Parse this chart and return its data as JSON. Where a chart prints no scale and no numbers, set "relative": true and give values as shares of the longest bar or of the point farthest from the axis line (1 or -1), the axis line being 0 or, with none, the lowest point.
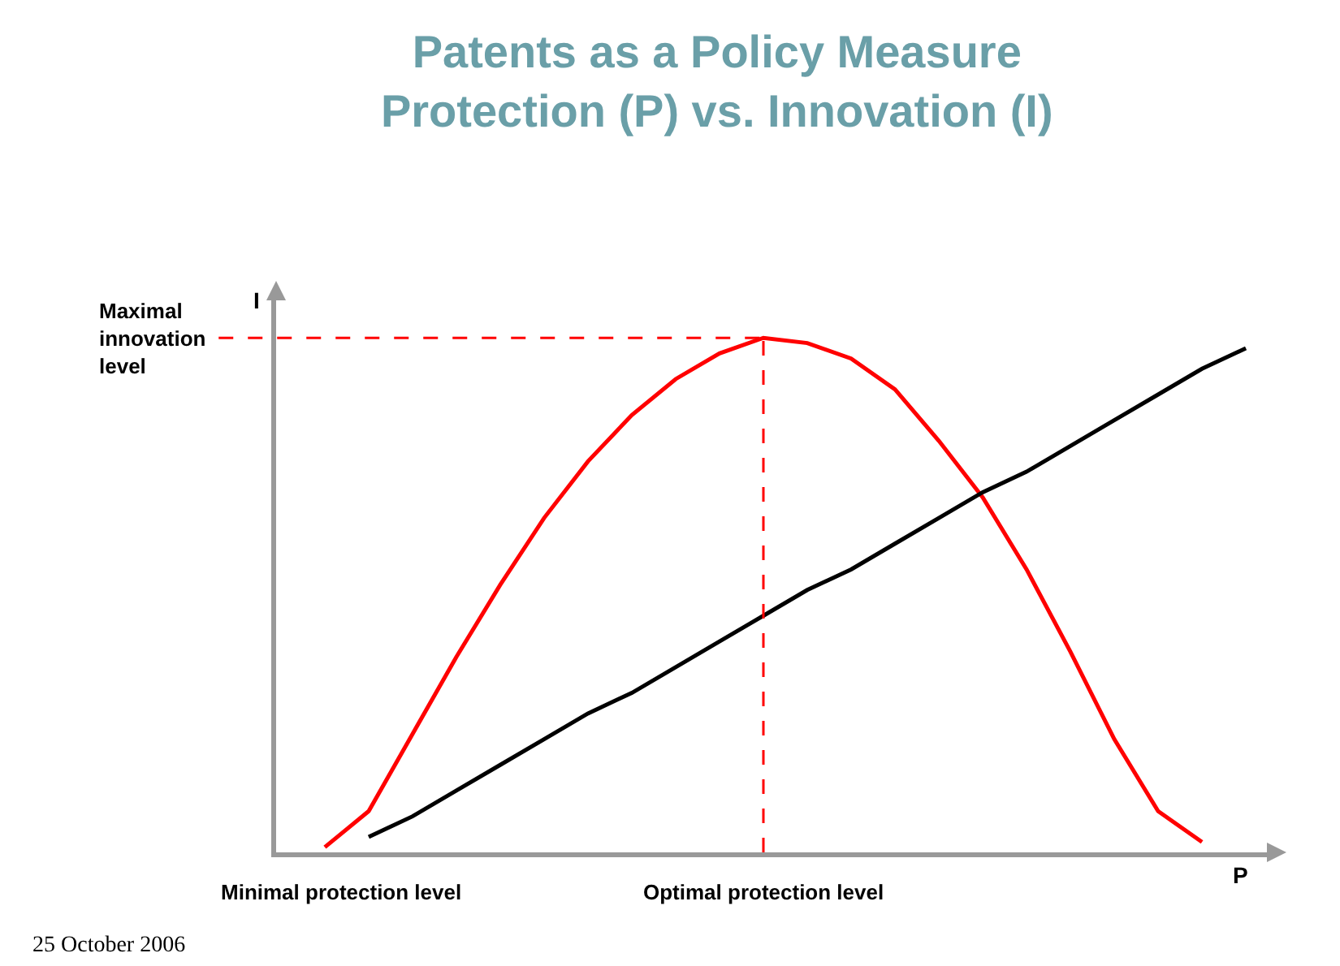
{
  "chart_data": {
    "type": "line",
    "title": "Patents as a Policy Measure\nProtection (P) vs. Innovation (I)",
    "xlabel": "P",
    "ylabel": "I",
    "relative": true,
    "marker": "none",
    "categories": [
      null,
      null,
      null,
      null,
      null,
      null,
      null,
      null,
      null,
      null,
      null,
      null,
      null,
      null,
      null,
      null,
      null,
      null,
      null,
      null,
      null,
      null
    ],
    "series": [
      {
        "color": "#ff0000",
        "values": [
          0.01,
          0.08,
          0.23,
          0.38,
          0.52,
          0.65,
          0.76,
          0.85,
          0.92,
          0.97,
          1.0,
          0.99,
          0.96,
          0.9,
          0.8,
          0.69,
          0.55,
          0.39,
          0.22,
          0.08,
          0.02,
          null
        ]
      },
      {
        "color": "#000000",
        "values": [
          null,
          0.03,
          0.07,
          0.12,
          0.17,
          0.22,
          0.27,
          0.31,
          0.36,
          0.41,
          0.46,
          0.51,
          0.55,
          0.6,
          0.65,
          0.7,
          0.74,
          0.79,
          0.84,
          0.89,
          0.94,
          0.98
        ]
      }
    ],
    "ref_lines": [
      {
        "axis": "y",
        "value": 1,
        "label": "Maximal innovation level",
        "color": "#ff0000",
        "line_style": "dashed"
      }
    ],
    "annotations": [
      "Minimal protection level",
      "Optimal protection level",
      "25 October 2006"
    ]
  }
}
